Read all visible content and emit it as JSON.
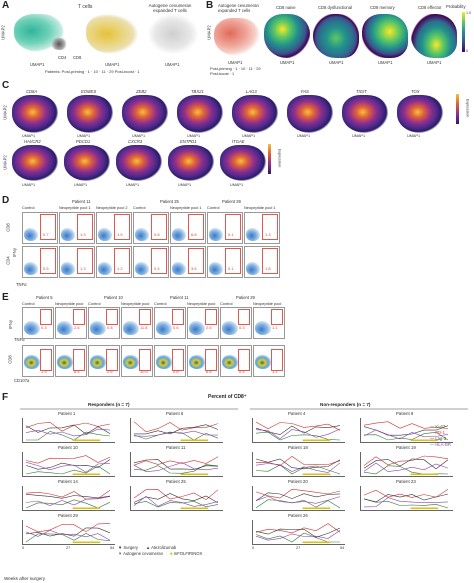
{
  "panelA": {
    "letter": "A",
    "titles": [
      "T cells",
      "Autogene cevumeran expanded T cells"
    ],
    "labels": {
      "umap1": "UMAP1",
      "umap2": "UMAP2",
      "cd4": "CD4",
      "cd8": "CD8"
    },
    "legend": "Patients: Post-priming · 1 · 10 · 11 · 29    Post-boost · 1"
  },
  "panelB": {
    "letter": "B",
    "titles": [
      "Autogene cevumeran expanded T cells",
      "CD8 naive",
      "CD8 dysfunctional",
      "CD8 memory",
      "CD8 effector"
    ],
    "legend_line1": "Post-priming · 1 · 10 · 11 · 29",
    "legend_line2": "Post-boost · 1",
    "colorbar_label": "Probability",
    "colorbar_ticks": [
      "1.0",
      "0.8",
      "0.6",
      "0.4",
      "0.2",
      "0"
    ]
  },
  "panelC": {
    "letter": "C",
    "genes_row1": [
      "CD8A",
      "EOMES",
      "ZEB2",
      "TBX21",
      "LAG3",
      "FAS",
      "TIGIT",
      "TOX"
    ],
    "genes_row2": [
      "HAVCR2",
      "PDCD1",
      "CXCR3",
      "ENTPD1",
      "ITGAE"
    ],
    "colorbar_label": "Expression",
    "colorbar_ticks": [
      "2",
      "1",
      "0"
    ]
  },
  "panelD": {
    "letter": "D",
    "patients": [
      "Patient 11",
      "Patient 25",
      "Patient 29"
    ],
    "columns": [
      "Control",
      "Neopeptide pool 1",
      "Neopeptide pool 2",
      "Control",
      "Neopeptide pool 1",
      "Control",
      "Neopeptide pool 1"
    ],
    "row1_values": [
      "0.7",
      "1.3",
      "1.5",
      "0.8",
      "6.8",
      "0.1",
      "1.3"
    ],
    "row2_values": [
      "0.5",
      "1.3",
      "1.2",
      "0.4",
      "3.6",
      "0.1",
      "1.8"
    ],
    "axis_labels": {
      "cd8": "CD8",
      "cd4": "CD4",
      "ifng": "IFNγ",
      "tnfa": "TNFα"
    }
  },
  "panelE": {
    "letter": "E",
    "patients": [
      "Patient 5",
      "Patient 10",
      "Patient 11",
      "Patient 29"
    ],
    "columns": [
      "Control",
      "Neopeptide pool",
      "Control",
      "Neopeptide pool",
      "Control",
      "Neopeptide pool",
      "Control",
      "Neopeptide pool"
    ],
    "row1_values": [
      "0.3",
      "2.6",
      "0.8",
      "11.8",
      "0.6",
      "2.6",
      "0.3",
      "1.1"
    ],
    "row2_values": [
      "1.9",
      "8.4",
      "2.6",
      "10.0",
      "0.8",
      "6.8",
      "0.4",
      "1.1"
    ],
    "axis_labels": {
      "ifng": "IFNγ",
      "tnfa": "TNFα",
      "cd8": "CD8",
      "cd107a": "CD107a"
    }
  },
  "panelF": {
    "letter": "F",
    "header": "Percent of CD8⁺",
    "responders": "Responders (n = 7)",
    "nonresponders": "Non-responders (n = 7)",
    "patients_left": [
      "Patient 1",
      "Patient 6",
      "Patient 10",
      "Patient 11",
      "Patient 14",
      "Patient 25",
      "Patient 29"
    ],
    "patients_right": [
      "Patient 4",
      "Patient 9",
      "Patient 18",
      "Patient 19",
      "Patient 20",
      "Patient 23",
      "Patient 26"
    ],
    "legend_markers": [
      "Ki-67",
      "PD-1",
      "Lag-3",
      "HLA-DR"
    ],
    "legend_colors": [
      "#2e7d32",
      "#d32f2f",
      "#333333",
      "#8e44ad"
    ],
    "bottom_legend": [
      "Surgery",
      "Atezolizumab",
      "Autogene cevumeran",
      "mFOLFIRINOX"
    ],
    "xlabel": "Weeks after surgery",
    "x_ticks": [
      "0",
      "27",
      "54"
    ]
  }
}
